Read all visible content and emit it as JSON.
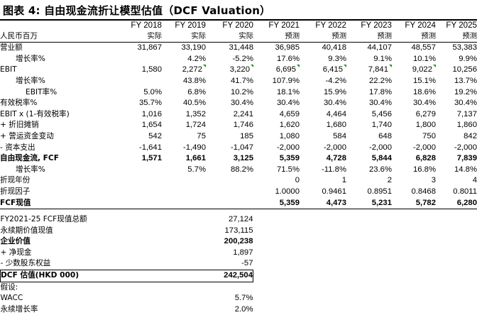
{
  "title": "图表 4:  自由现金流折让模型估值（DCF Valuation）",
  "header": {
    "years": [
      "FY 2018",
      "FY 2019",
      "FY 2020",
      "FY 2021",
      "FY 2022",
      "FY 2023",
      "FY 2024",
      "FY 2025"
    ],
    "unit_label": "人民币百万",
    "types": [
      "实际",
      "实际",
      "实际",
      "预测",
      "预测",
      "预测",
      "预测",
      "预测"
    ]
  },
  "rows": [
    {
      "label": "营业额",
      "values": [
        "31,867",
        "33,190",
        "31,448",
        "36,985",
        "40,418",
        "44,107",
        "48,557",
        "53,383"
      ]
    },
    {
      "label": "增长率%",
      "values": [
        "",
        "4.2%",
        "-5.2%",
        "17.6%",
        "9.3%",
        "9.1%",
        "10.1%",
        "9.9%"
      ]
    },
    {
      "label": "EBIT",
      "values": [
        "1,580",
        "2,272",
        "3,220",
        "6,695",
        "6,415",
        "7,841",
        "9,022",
        "10,256"
      ]
    },
    {
      "label": "增长率%",
      "values": [
        "",
        "43.8%",
        "41.7%",
        "107.9%",
        "-4.2%",
        "22.2%",
        "15.1%",
        "13.7%"
      ]
    },
    {
      "label": "EBIT率%",
      "values": [
        "5.0%",
        "6.8%",
        "10.2%",
        "18.1%",
        "15.9%",
        "17.8%",
        "18.6%",
        "19.2%"
      ]
    },
    {
      "label": "有效税率%",
      "values": [
        "35.7%",
        "40.5%",
        "30.4%",
        "30.4%",
        "30.4%",
        "30.4%",
        "30.4%",
        "30.4%"
      ]
    },
    {
      "label": "EBIT x (1-有效税率)",
      "values": [
        "1,016",
        "1,352",
        "2,241",
        "4,659",
        "4,464",
        "5,456",
        "6,279",
        "7,137"
      ]
    },
    {
      "label": "+ 折旧摊销",
      "values": [
        "1,654",
        "1,724",
        "1,746",
        "1,620",
        "1,680",
        "1,740",
        "1,800",
        "1,860"
      ]
    },
    {
      "label": "+ 营运资金变动",
      "values": [
        "542",
        "75",
        "185",
        "1,080",
        "584",
        "648",
        "750",
        "842"
      ]
    },
    {
      "label": "- 资本支出",
      "values": [
        "-1,641",
        "-1,490",
        "-1,047",
        "-2,000",
        "-2,000",
        "-2,000",
        "-2,000",
        "-2,000"
      ]
    },
    {
      "label": "自由现金流, FCF",
      "values": [
        "1,571",
        "1,661",
        "3,125",
        "5,359",
        "4,728",
        "5,844",
        "6,828",
        "7,839"
      ]
    },
    {
      "label": "增长率%",
      "values": [
        "",
        "5.7%",
        "88.2%",
        "71.5%",
        "-11.8%",
        "23.6%",
        "16.8%",
        "14.8%"
      ]
    },
    {
      "label": "折现年份",
      "values": [
        "",
        "",
        "",
        "0",
        "1",
        "2",
        "3",
        "4"
      ]
    },
    {
      "label": "折现因子",
      "values": [
        "",
        "",
        "",
        "1.0000",
        "0.9461",
        "0.8951",
        "0.8468",
        "0.8011"
      ]
    },
    {
      "label": "FCF现值",
      "values": [
        "",
        "",
        "",
        "5,359",
        "4,473",
        "5,231",
        "5,782",
        "6,280"
      ]
    }
  ],
  "summary": [
    {
      "label": "FY2021-25 FCF现值总额",
      "value": "27,124"
    },
    {
      "label": "永续期价值现值",
      "value": "173,115"
    },
    {
      "label": "企业价值",
      "value": "200,238"
    },
    {
      "label": "+ 净现金",
      "value": "1,897"
    },
    {
      "label": "- 少数股东权益",
      "value": "-57"
    },
    {
      "label": "DCF 估值(HKD 000)",
      "value": "242,504"
    },
    {
      "label": "假设:",
      "value": ""
    },
    {
      "label": "WACC",
      "value": "5.7%"
    },
    {
      "label": "永续增长率",
      "value": "2.0%"
    }
  ]
}
